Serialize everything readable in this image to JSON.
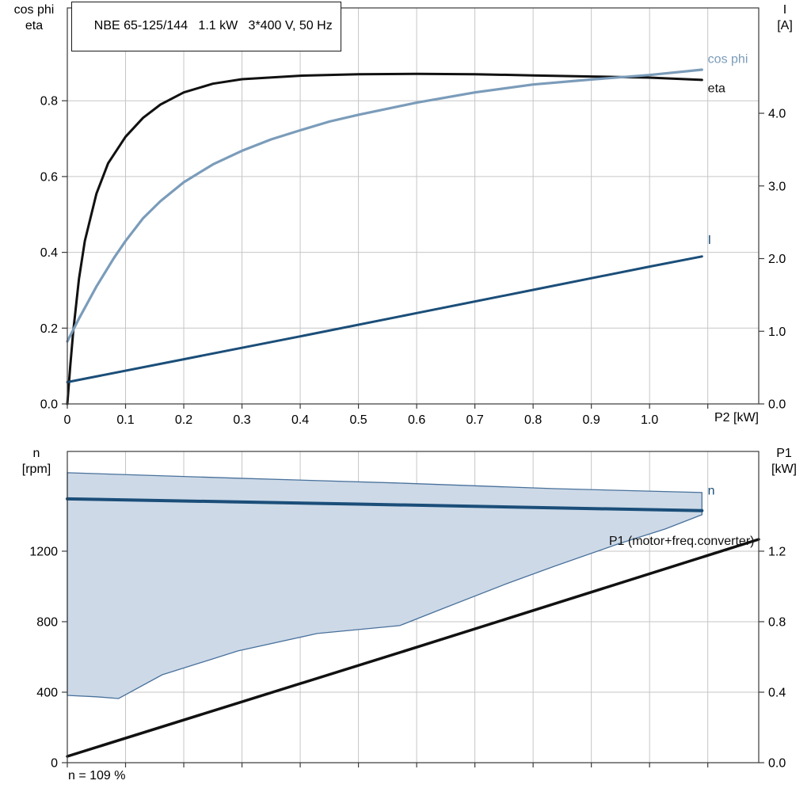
{
  "title": "NBE 65-125/144   1.1 kW   3*400 V, 50 Hz",
  "colors": {
    "grid": "#c6c6c6",
    "frame": "#3a3a3a",
    "eta": "#111111",
    "cos_phi": "#7b9cba",
    "current": "#1b4e79",
    "speed": "#1b4e79",
    "p1": "#111111",
    "band_fill": "#cdd9e7",
    "band_edge": "#49719c"
  },
  "chart_data": [
    {
      "type": "line",
      "title": "NBE 65-125/144   1.1 kW   3*400 V, 50 Hz",
      "xlabel": "P2 [kW]",
      "ylabels_left": [
        "cos phi",
        "eta"
      ],
      "ylabels_right": [
        "I",
        "[A]"
      ],
      "plot": {
        "l": 85,
        "t": 10,
        "r": 958,
        "b": 510
      },
      "xlim": [
        0,
        1.1875
      ],
      "x_grid": [
        0.1,
        0.2,
        0.3,
        0.4,
        0.5,
        0.6,
        0.7,
        0.8,
        0.9,
        1.0,
        1.1
      ],
      "x_ticks": [
        [
          0,
          "0"
        ],
        [
          0.1,
          "0.1"
        ],
        [
          0.2,
          "0.2"
        ],
        [
          0.3,
          "0.3"
        ],
        [
          0.4,
          "0.4"
        ],
        [
          0.5,
          "0.5"
        ],
        [
          0.6,
          "0.6"
        ],
        [
          0.7,
          "0.7"
        ],
        [
          0.8,
          "0.8"
        ],
        [
          0.9,
          "0.9"
        ],
        [
          1.0,
          "1.0"
        ],
        [
          1.1,
          ""
        ]
      ],
      "left": {
        "lim": [
          0,
          1.045
        ],
        "ticks": [
          [
            0,
            "0.0"
          ],
          [
            0.2,
            "0.2"
          ],
          [
            0.4,
            "0.4"
          ],
          [
            0.6,
            "0.6"
          ],
          [
            0.8,
            "0.8"
          ]
        ]
      },
      "right": {
        "lim": [
          0,
          5.45
        ],
        "ticks": [
          [
            0,
            "0.0"
          ],
          [
            1,
            "1.0"
          ],
          [
            2,
            "2.0"
          ],
          [
            3,
            "3.0"
          ],
          [
            4,
            "4.0"
          ]
        ]
      },
      "series": [
        {
          "name": "eta",
          "axis": "left",
          "color": "#111111",
          "width": 3,
          "label": "eta",
          "label_at": [
            1.1,
            0.822
          ],
          "points": [
            [
              0,
              0
            ],
            [
              0.005,
              0.1
            ],
            [
              0.01,
              0.19
            ],
            [
              0.02,
              0.33
            ],
            [
              0.03,
              0.43
            ],
            [
              0.05,
              0.555
            ],
            [
              0.07,
              0.635
            ],
            [
              0.1,
              0.705
            ],
            [
              0.13,
              0.755
            ],
            [
              0.16,
              0.79
            ],
            [
              0.2,
              0.822
            ],
            [
              0.25,
              0.845
            ],
            [
              0.3,
              0.857
            ],
            [
              0.4,
              0.866
            ],
            [
              0.5,
              0.87
            ],
            [
              0.6,
              0.871
            ],
            [
              0.7,
              0.87
            ],
            [
              0.8,
              0.867
            ],
            [
              0.9,
              0.864
            ],
            [
              1.0,
              0.861
            ],
            [
              1.09,
              0.855
            ]
          ]
        },
        {
          "name": "cos-phi",
          "axis": "left",
          "color": "#7b9cba",
          "width": 3.2,
          "label": "cos phi",
          "label_at": [
            1.1,
            0.9
          ],
          "points": [
            [
              0,
              0.165
            ],
            [
              0.02,
              0.225
            ],
            [
              0.05,
              0.31
            ],
            [
              0.08,
              0.385
            ],
            [
              0.1,
              0.43
            ],
            [
              0.13,
              0.49
            ],
            [
              0.16,
              0.535
            ],
            [
              0.2,
              0.585
            ],
            [
              0.25,
              0.632
            ],
            [
              0.3,
              0.668
            ],
            [
              0.35,
              0.698
            ],
            [
              0.4,
              0.722
            ],
            [
              0.45,
              0.745
            ],
            [
              0.5,
              0.763
            ],
            [
              0.6,
              0.795
            ],
            [
              0.7,
              0.822
            ],
            [
              0.8,
              0.843
            ],
            [
              0.9,
              0.856
            ],
            [
              1.0,
              0.868
            ],
            [
              1.09,
              0.882
            ]
          ]
        },
        {
          "name": "current",
          "axis": "right",
          "color": "#1b4e79",
          "width": 3,
          "label": "I",
          "label_at": [
            1.1,
            2.2
          ],
          "points": [
            [
              0,
              0.3
            ],
            [
              0.2,
              0.615
            ],
            [
              0.4,
              0.93
            ],
            [
              0.6,
              1.25
            ],
            [
              0.8,
              1.57
            ],
            [
              1.0,
              1.89
            ],
            [
              1.09,
              2.03
            ]
          ]
        }
      ]
    },
    {
      "type": "line",
      "ylabels_left": [
        "n",
        "[rpm]"
      ],
      "ylabels_right": [
        "P1",
        "[kW]"
      ],
      "note": "n = 109 %",
      "plot": {
        "l": 85,
        "t": 570,
        "r": 958,
        "b": 963
      },
      "xlim": [
        0,
        1.1875
      ],
      "x_grid": [
        0.1,
        0.2,
        0.3,
        0.4,
        0.5,
        0.6,
        0.7,
        0.8,
        0.9,
        1.0,
        1.1
      ],
      "x_ticks": [
        [
          0,
          ""
        ],
        [
          0.1,
          ""
        ],
        [
          0.2,
          ""
        ],
        [
          0.3,
          ""
        ],
        [
          0.4,
          ""
        ],
        [
          0.5,
          ""
        ],
        [
          0.6,
          ""
        ],
        [
          0.7,
          ""
        ],
        [
          0.8,
          ""
        ],
        [
          0.9,
          ""
        ],
        [
          1.0,
          ""
        ],
        [
          1.1,
          ""
        ]
      ],
      "left": {
        "lim": [
          0,
          1766
        ],
        "ticks": [
          [
            0,
            "0"
          ],
          [
            400,
            "400"
          ],
          [
            800,
            "800"
          ],
          [
            1200,
            "1200"
          ]
        ]
      },
      "right": {
        "lim": [
          0,
          1.766
        ],
        "ticks": [
          [
            0,
            "0.0"
          ],
          [
            0.4,
            "0.4"
          ],
          [
            0.8,
            "0.8"
          ],
          [
            1.2,
            "1.2"
          ]
        ]
      },
      "band": {
        "name": "speed-operating-range",
        "fill": "#cdd9e7",
        "edge": "#49719c",
        "upper": [
          [
            0,
            1645
          ],
          [
            0.293,
            1614
          ],
          [
            0.565,
            1587
          ],
          [
            0.837,
            1555
          ],
          [
            1.09,
            1533
          ]
        ],
        "lower": [
          [
            0,
            382
          ],
          [
            0.05,
            374
          ],
          [
            0.088,
            364
          ],
          [
            0.163,
            499
          ],
          [
            0.293,
            634
          ],
          [
            0.429,
            733
          ],
          [
            0.571,
            778
          ],
          [
            0.646,
            876
          ],
          [
            0.755,
            1016
          ],
          [
            0.837,
            1115
          ],
          [
            0.946,
            1241
          ],
          [
            1.027,
            1326
          ],
          [
            1.09,
            1407
          ]
        ]
      },
      "series": [
        {
          "name": "speed",
          "axis": "left",
          "color": "#1b4e79",
          "width": 4,
          "label": "n",
          "label_at": [
            1.1,
            1520
          ],
          "points": [
            [
              0,
              1497
            ],
            [
              0.5,
              1467
            ],
            [
              1.09,
              1430
            ]
          ]
        },
        {
          "name": "p1",
          "axis": "right",
          "color": "#111111",
          "width": 3.5,
          "label": "P1 (motor+freq.converter)",
          "label_at": [
            1.18,
            1.235
          ],
          "label_anchor": "end",
          "points": [
            [
              0,
              0.036
            ],
            [
              0.6,
              0.655
            ],
            [
              1.1875,
              1.267
            ]
          ]
        }
      ]
    }
  ]
}
